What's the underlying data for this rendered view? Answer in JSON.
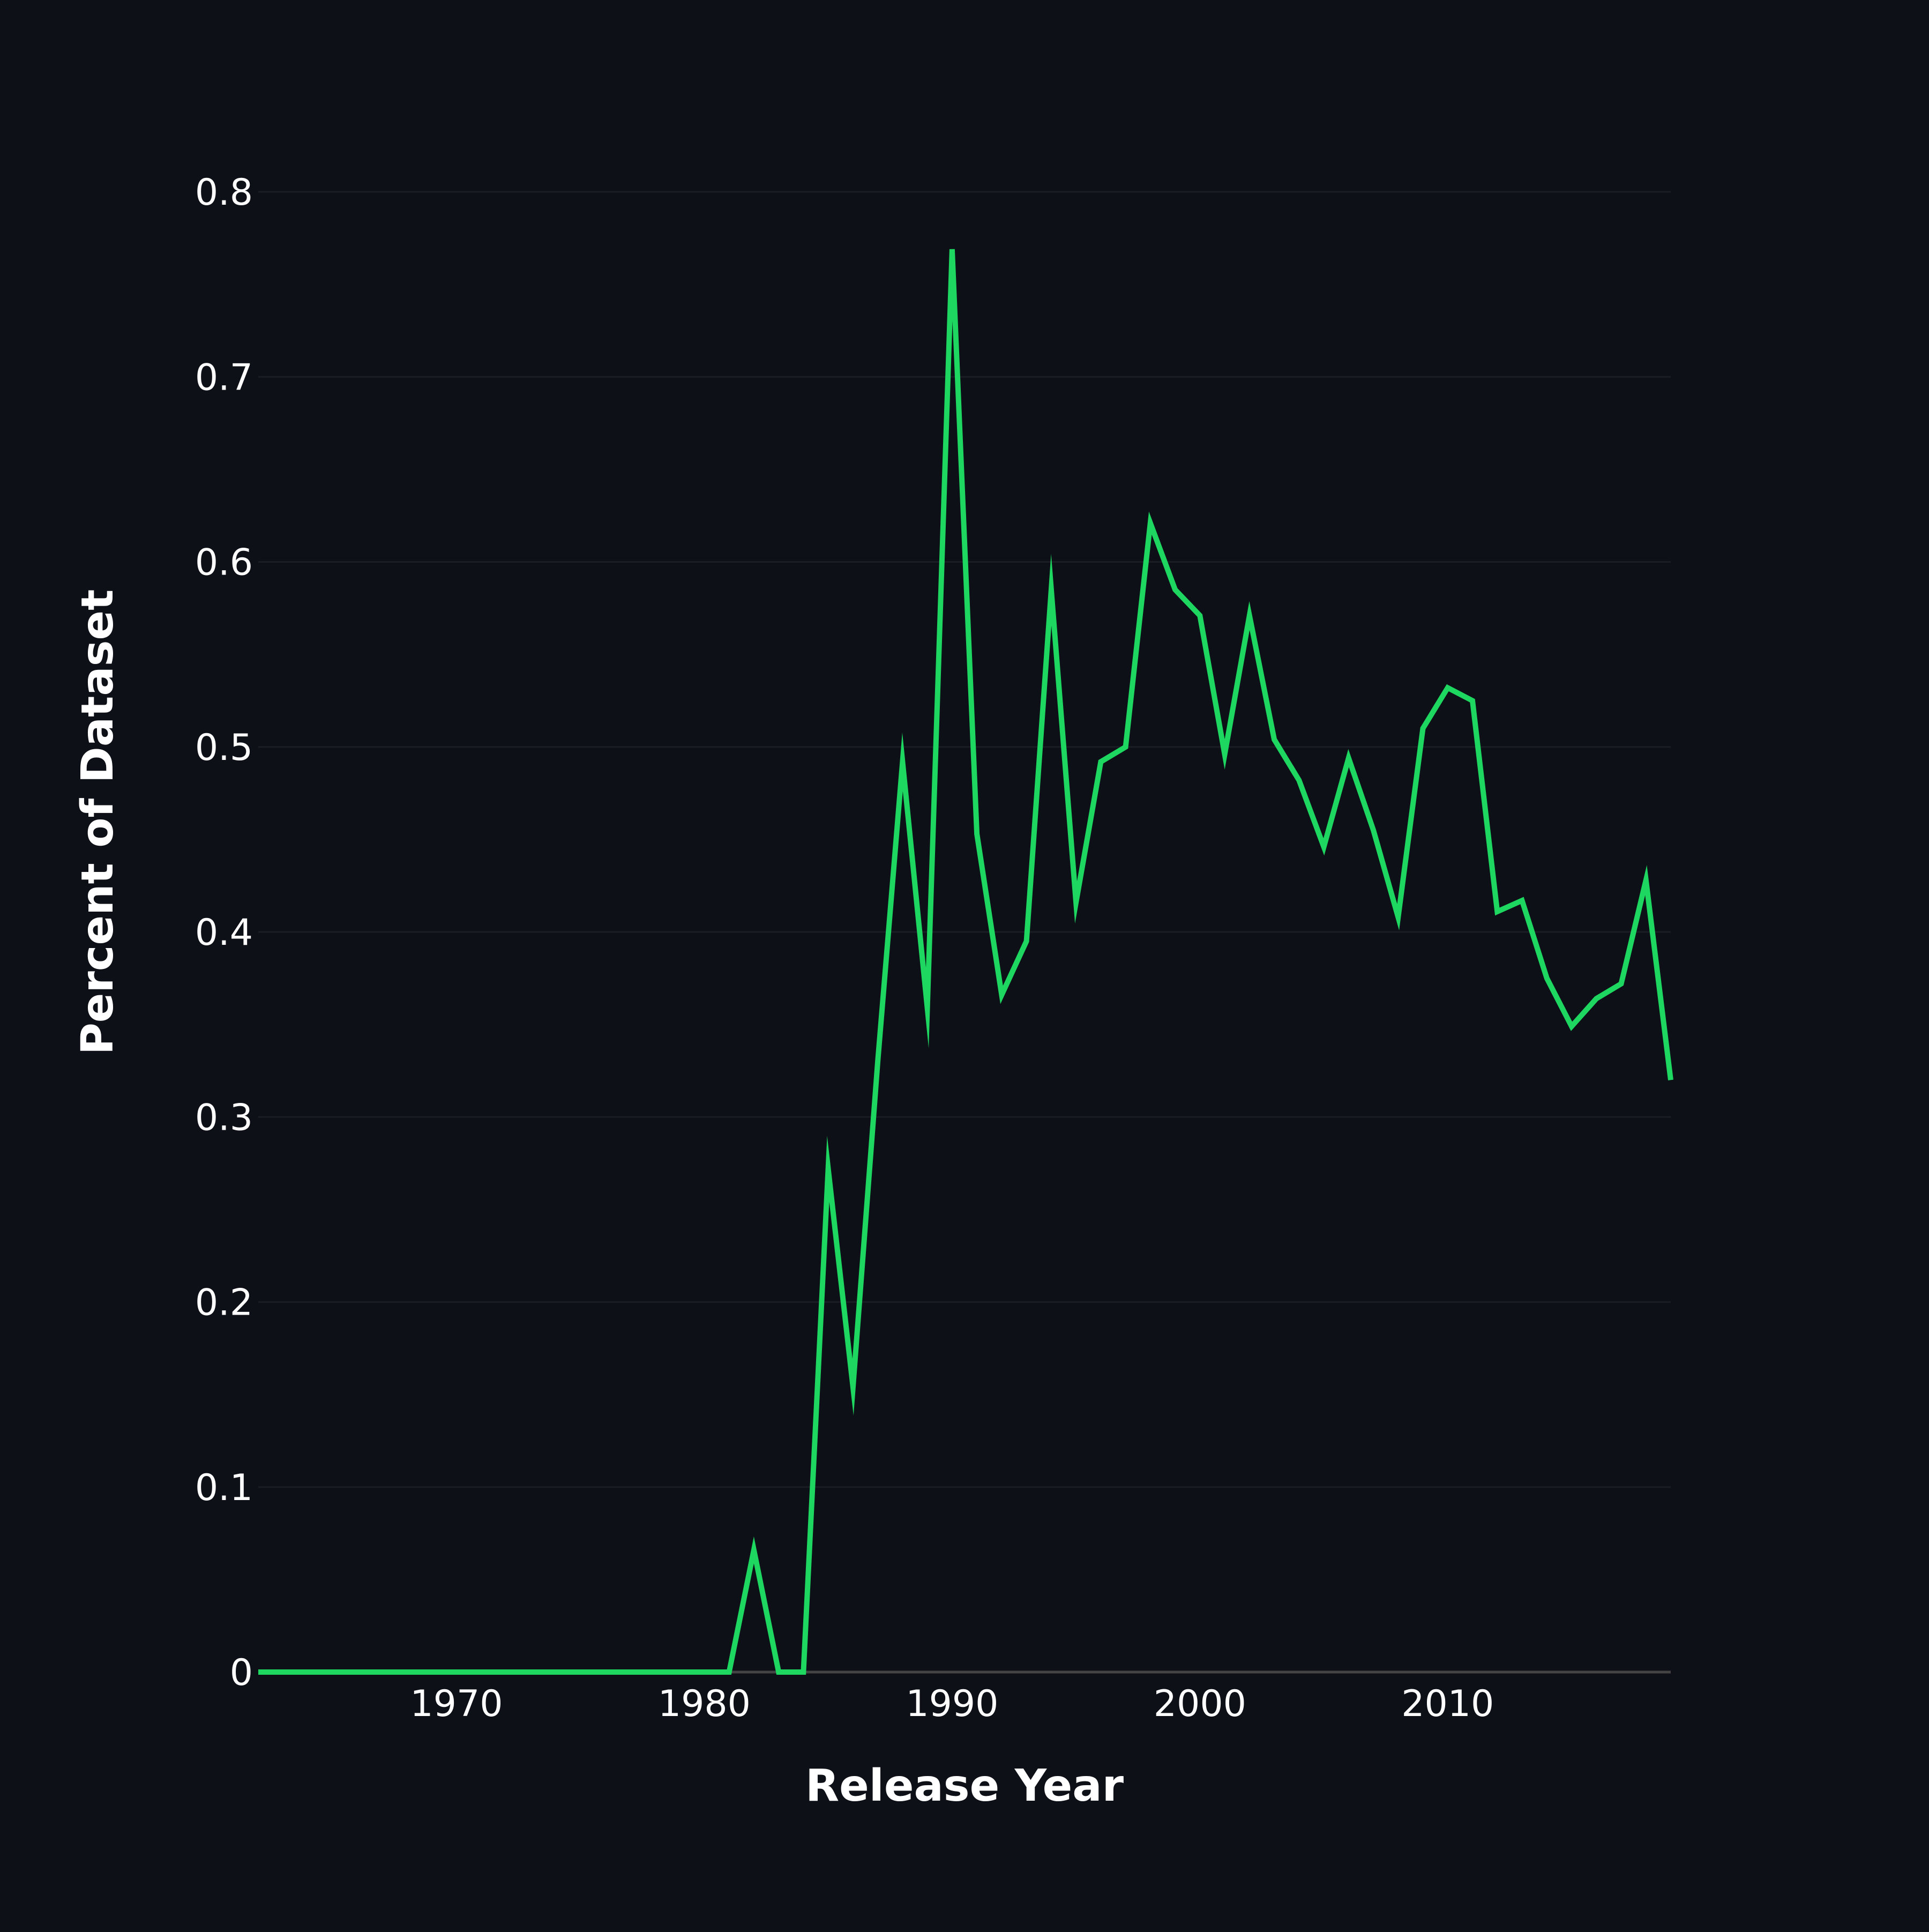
{
  "chart_data": {
    "type": "line",
    "title": "",
    "xlabel": "Release Year",
    "ylabel": "Percent of Dataset",
    "xlim": [
      1962,
      2019
    ],
    "ylim": [
      0,
      0.8
    ],
    "xticks": [
      1970,
      1980,
      1990,
      2000,
      2010
    ],
    "xtick_labels": [
      "1970",
      "1980",
      "1990",
      "2000",
      "2010"
    ],
    "yticks": [
      0,
      0.1,
      0.2,
      0.3,
      0.4,
      0.5,
      0.6,
      0.7,
      0.8
    ],
    "ytick_labels": [
      "0",
      "0.1",
      "0.2",
      "0.3",
      "0.4",
      "0.5",
      "0.6",
      "0.7",
      "0.8"
    ],
    "grid": true,
    "legend": "none",
    "colors": {
      "line": "#1ed760",
      "background": "#0d1017",
      "grid": "#1a1e24",
      "axis": "#444444",
      "text": "#ffffff"
    },
    "series": [
      {
        "x": [
          1962,
          1963,
          1964,
          1965,
          1966,
          1967,
          1968,
          1969,
          1970,
          1971,
          1972,
          1973,
          1974,
          1975,
          1976,
          1977,
          1978,
          1979,
          1980,
          1981,
          1982,
          1983,
          1984,
          1985,
          1986,
          1987,
          1988,
          1989,
          1990,
          1991,
          1992,
          1993,
          1994,
          1995,
          1996,
          1997,
          1998,
          1999,
          2000,
          2001,
          2002,
          2003,
          2004,
          2005,
          2006,
          2007,
          2008,
          2009,
          2010,
          2011,
          2012,
          2013,
          2014,
          2015,
          2016,
          2017,
          2018,
          2019
        ],
        "values": [
          0,
          0,
          0,
          0,
          0,
          0,
          0,
          0,
          0,
          0,
          0,
          0,
          0,
          0,
          0,
          0,
          0,
          0,
          0,
          0,
          0.066,
          0,
          0,
          0.272,
          0.154,
          0.33,
          0.492,
          0.359,
          0.769,
          0.453,
          0.366,
          0.395,
          0.585,
          0.416,
          0.492,
          0.5,
          0.621,
          0.585,
          0.571,
          0.496,
          0.571,
          0.504,
          0.482,
          0.446,
          0.494,
          0.455,
          0.408,
          0.51,
          0.532,
          0.525,
          0.411,
          0.417,
          0.375,
          0.349,
          0.364,
          0.372,
          0.428,
          0.32
        ]
      }
    ]
  }
}
